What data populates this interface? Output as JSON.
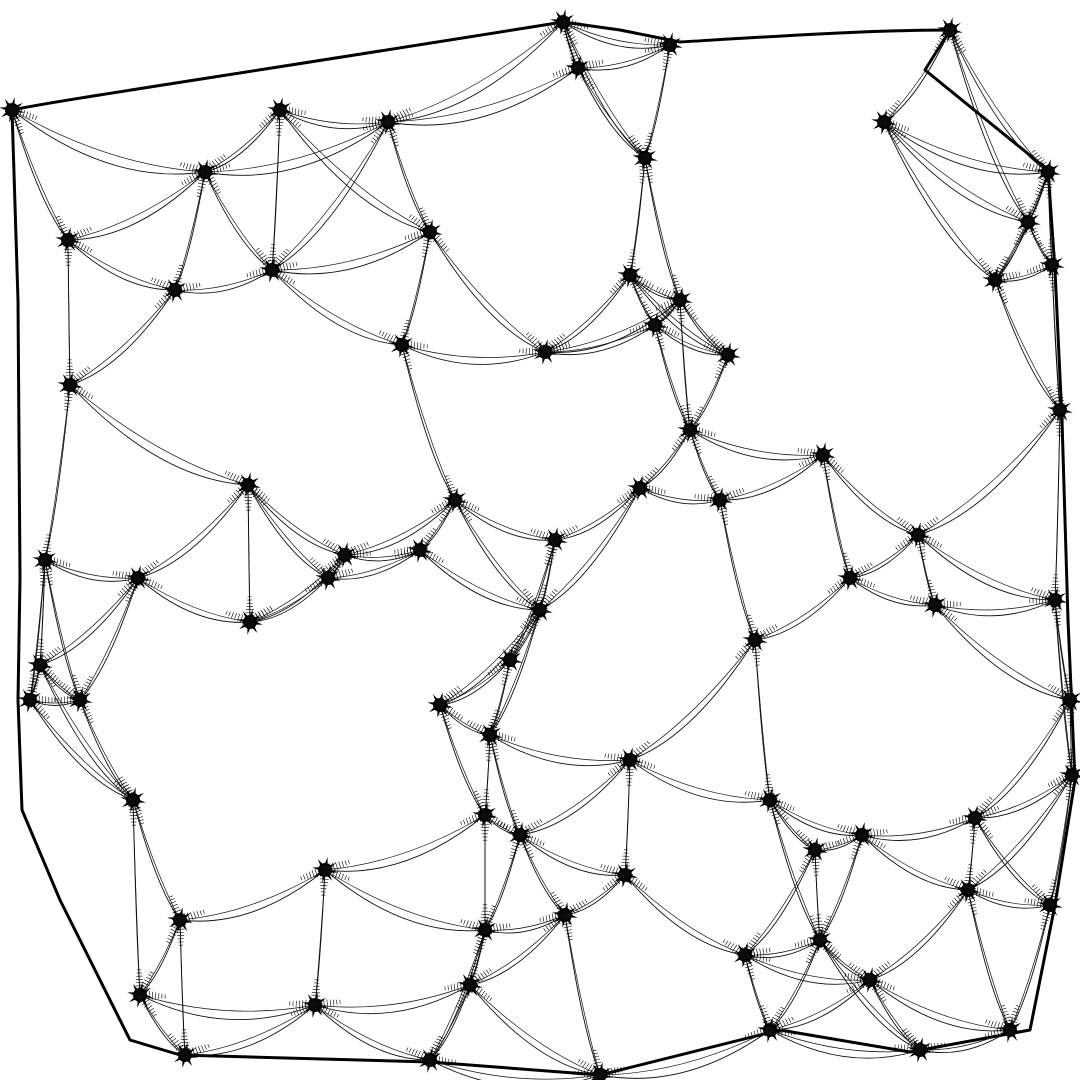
{
  "artwork": {
    "subject": "",
    "colors": {
      "background": "#ffffff",
      "ink": "#000000"
    }
  }
}
